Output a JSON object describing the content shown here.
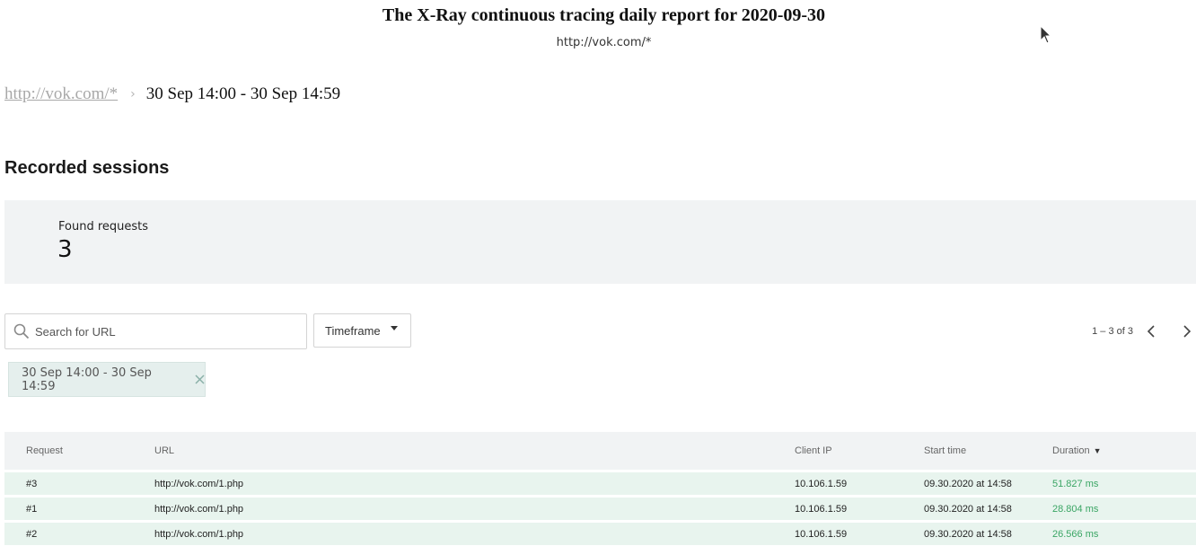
{
  "report": {
    "title": "The X-Ray continuous tracing daily report for 2020-09-30",
    "subtitle": "http://vok.com/*"
  },
  "breadcrumb": {
    "parent": "http://vok.com/*",
    "separator": "›",
    "current": "30 Sep 14:00 - 30 Sep 14:59"
  },
  "section": {
    "title": "Recorded sessions"
  },
  "summary": {
    "label": "Found requests",
    "value": "3"
  },
  "search": {
    "placeholder": "Search for URL"
  },
  "timeframe": {
    "label": "Timeframe"
  },
  "pagination": {
    "range": "1 – 3 of 3"
  },
  "filter_chip": {
    "label": "30 Sep 14:00 - 30 Sep 14:59"
  },
  "table": {
    "headers": [
      "Request",
      "URL",
      "Client IP",
      "Start time",
      "Duration"
    ],
    "sort_indicator": "▼",
    "rows": [
      {
        "request": "#3",
        "url": "http://vok.com/1.php",
        "client_ip": "10.106.1.59",
        "start_time": "09.30.2020 at 14:58",
        "duration": "51.827 ms"
      },
      {
        "request": "#1",
        "url": "http://vok.com/1.php",
        "client_ip": "10.106.1.59",
        "start_time": "09.30.2020 at 14:58",
        "duration": "28.804 ms"
      },
      {
        "request": "#2",
        "url": "http://vok.com/1.php",
        "client_ip": "10.106.1.59",
        "start_time": "09.30.2020 at 14:58",
        "duration": "26.566 ms"
      }
    ]
  },
  "colors": {
    "duration": "#3aa564",
    "panel": "#f1f3f4",
    "row": "#e8f4ee"
  }
}
